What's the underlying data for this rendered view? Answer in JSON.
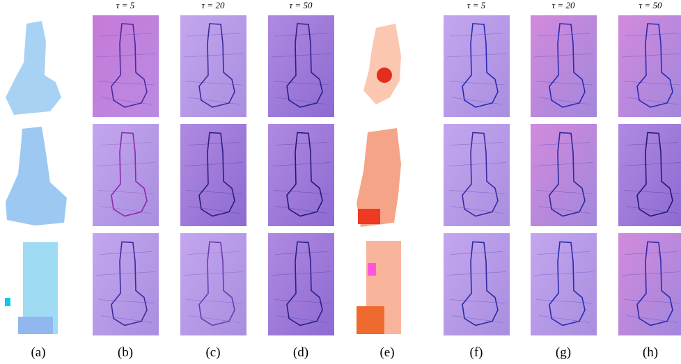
{
  "headers": [
    "τ = 5",
    "τ = 20",
    "τ = 50",
    "τ = 5",
    "τ = 20",
    "τ = 50"
  ],
  "captions": [
    "(a)",
    "(b)",
    "(c)",
    "(d)",
    "(e)",
    "(f)",
    "(g)",
    "(h)"
  ]
}
